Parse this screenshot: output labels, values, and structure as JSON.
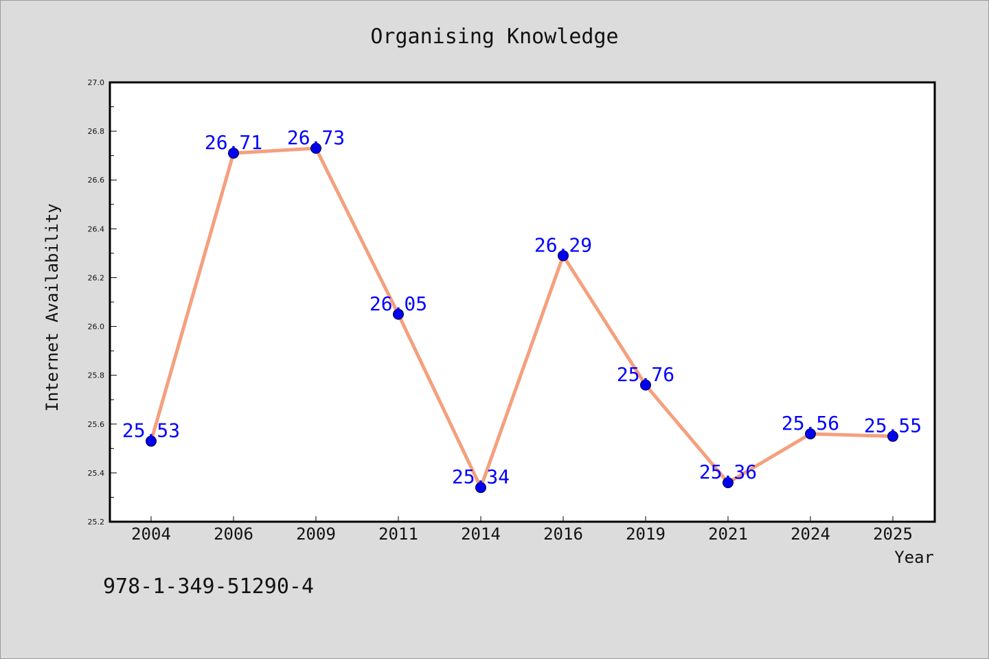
{
  "chart_data": {
    "type": "line",
    "title": "Organising Knowledge",
    "xlabel": "Year",
    "ylabel": "Internet Availability",
    "categories": [
      "2004",
      "2006",
      "2009",
      "2011",
      "2014",
      "2016",
      "2019",
      "2021",
      "2024",
      "2025"
    ],
    "values": [
      25.53,
      26.71,
      26.73,
      26.05,
      25.34,
      26.29,
      25.76,
      25.36,
      25.56,
      25.55
    ],
    "data_labels": [
      "25.53",
      "26.71",
      "26.73",
      "26.05",
      "25.34",
      "26.29",
      "25.76",
      "25.36",
      "25.56",
      "25.55"
    ],
    "ylim": [
      25.2,
      27.0
    ],
    "yticks": [
      "25.2",
      "25.4",
      "25.6",
      "25.8",
      "26.0",
      "26.2",
      "26.4",
      "26.6",
      "26.8",
      "27.0"
    ],
    "grid": false,
    "line_color": "#f4a07e",
    "marker_color": "#0000ee",
    "label_color": "#0000ff"
  },
  "footer": {
    "isbn": "978-1-349-51290-4"
  }
}
